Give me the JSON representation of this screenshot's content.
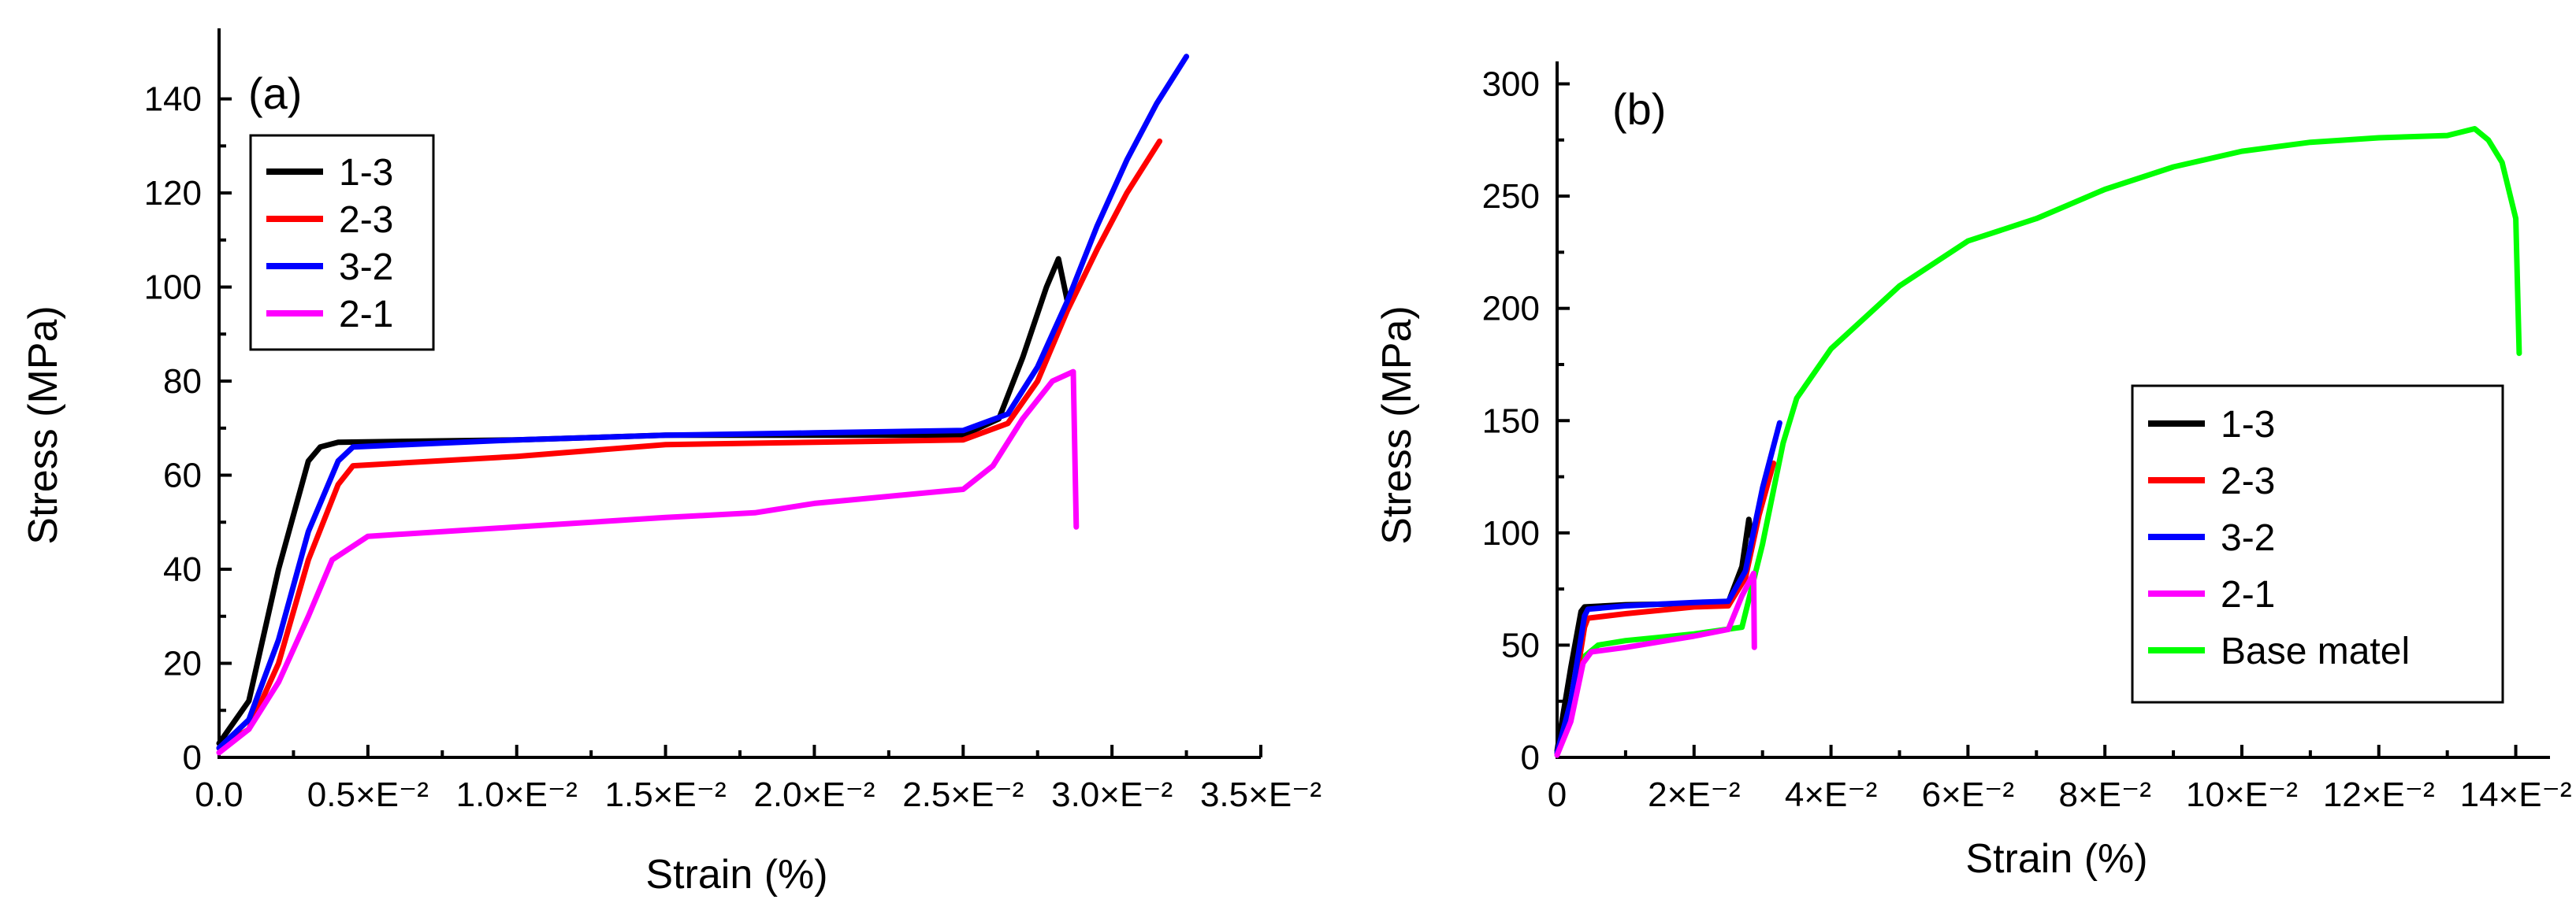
{
  "chart_data": [
    {
      "panel": "(a)",
      "type": "line",
      "xlabel": "Strain (%)",
      "ylabel": "Stress (MPa)",
      "xlim": [
        0,
        0.035
      ],
      "ylim": [
        0,
        155
      ],
      "xticks": [
        {
          "v": 0,
          "label": "0.0"
        },
        {
          "v": 0.005,
          "label": "0.5×E⁻²"
        },
        {
          "v": 0.01,
          "label": "1.0×E⁻²"
        },
        {
          "v": 0.015,
          "label": "1.5×E⁻²"
        },
        {
          "v": 0.02,
          "label": "2.0×E⁻²"
        },
        {
          "v": 0.025,
          "label": "2.5×E⁻²"
        },
        {
          "v": 0.03,
          "label": "3.0×E⁻²"
        },
        {
          "v": 0.035,
          "label": "3.5×E⁻²"
        }
      ],
      "yticks": [
        {
          "v": 0,
          "label": "0"
        },
        {
          "v": 20,
          "label": "20"
        },
        {
          "v": 40,
          "label": "40"
        },
        {
          "v": 60,
          "label": "60"
        },
        {
          "v": 80,
          "label": "80"
        },
        {
          "v": 100,
          "label": "100"
        },
        {
          "v": 120,
          "label": "120"
        },
        {
          "v": 140,
          "label": "140"
        }
      ],
      "legend_position": "top-left",
      "series": [
        {
          "name": "1-3",
          "color": "#000000",
          "x": [
            0,
            0.001,
            0.002,
            0.003,
            0.0034,
            0.004,
            0.01,
            0.015,
            0.02,
            0.025,
            0.0262,
            0.027,
            0.0278,
            0.0282,
            0.0285
          ],
          "y": [
            3,
            12,
            40,
            63,
            66,
            67,
            67.5,
            68.5,
            68.5,
            68.5,
            72,
            85,
            100,
            106,
            97
          ]
        },
        {
          "name": "2-3",
          "color": "#ff0000",
          "x": [
            0,
            0.001,
            0.002,
            0.003,
            0.004,
            0.0045,
            0.01,
            0.015,
            0.02,
            0.025,
            0.0265,
            0.0275,
            0.0285,
            0.0295,
            0.0305,
            0.0316
          ],
          "y": [
            2,
            6,
            20,
            42,
            58,
            62,
            64,
            66.5,
            67,
            67.5,
            71,
            80,
            95,
            108,
            120,
            131
          ]
        },
        {
          "name": "3-2",
          "color": "#0000ff",
          "x": [
            0,
            0.001,
            0.002,
            0.003,
            0.004,
            0.0045,
            0.01,
            0.015,
            0.02,
            0.025,
            0.0265,
            0.0275,
            0.0285,
            0.0295,
            0.0305,
            0.0315,
            0.0325
          ],
          "y": [
            2,
            8,
            25,
            48,
            63,
            66,
            67.5,
            68.5,
            69,
            69.5,
            73,
            83,
            97,
            113,
            127,
            139,
            149
          ]
        },
        {
          "name": "2-1",
          "color": "#ff00ff",
          "x": [
            0,
            0.001,
            0.002,
            0.003,
            0.0038,
            0.005,
            0.01,
            0.015,
            0.018,
            0.02,
            0.025,
            0.026,
            0.027,
            0.028,
            0.0287,
            0.0288
          ],
          "y": [
            1,
            6,
            16,
            30,
            42,
            47,
            49,
            51,
            52,
            54,
            57,
            62,
            72,
            80,
            82,
            49
          ]
        }
      ]
    },
    {
      "panel": "(b)",
      "type": "line",
      "xlabel": "Strain (%)",
      "ylabel": "Stress (MPa)",
      "xlim": [
        0,
        0.145
      ],
      "ylim": [
        0,
        310
      ],
      "xticks": [
        {
          "v": 0,
          "label": "0"
        },
        {
          "v": 0.02,
          "label": "2×E⁻²"
        },
        {
          "v": 0.04,
          "label": "4×E⁻²"
        },
        {
          "v": 0.06,
          "label": "6×E⁻²"
        },
        {
          "v": 0.08,
          "label": "8×E⁻²"
        },
        {
          "v": 0.1,
          "label": "10×E⁻²"
        },
        {
          "v": 0.12,
          "label": "12×E⁻²"
        },
        {
          "v": 0.14,
          "label": "14×E⁻²"
        }
      ],
      "yticks": [
        {
          "v": 0,
          "label": "0"
        },
        {
          "v": 50,
          "label": "50"
        },
        {
          "v": 100,
          "label": "100"
        },
        {
          "v": 150,
          "label": "150"
        },
        {
          "v": 200,
          "label": "200"
        },
        {
          "v": 250,
          "label": "250"
        },
        {
          "v": 300,
          "label": "300"
        }
      ],
      "legend_position": "bottom-right",
      "series": [
        {
          "name": "1-3",
          "color": "#000000",
          "x": [
            0,
            0.002,
            0.0035,
            0.004,
            0.01,
            0.02,
            0.025,
            0.027,
            0.028,
            0.0285
          ],
          "y": [
            3,
            40,
            65,
            67,
            68,
            68.5,
            69,
            85,
            106,
            97
          ]
        },
        {
          "name": "2-3",
          "color": "#ff0000",
          "x": [
            0,
            0.002,
            0.004,
            0.0045,
            0.01,
            0.02,
            0.025,
            0.0275,
            0.0295,
            0.0316
          ],
          "y": [
            2,
            20,
            58,
            62,
            64,
            67,
            67.5,
            80,
            108,
            131
          ]
        },
        {
          "name": "3-2",
          "color": "#0000ff",
          "x": [
            0,
            0.002,
            0.004,
            0.0045,
            0.01,
            0.02,
            0.025,
            0.0275,
            0.03,
            0.0325
          ],
          "y": [
            2,
            25,
            63,
            66,
            67.5,
            69,
            69.5,
            83,
            120,
            149
          ]
        },
        {
          "name": "2-1",
          "color": "#ff00ff",
          "x": [
            0,
            0.002,
            0.0038,
            0.005,
            0.01,
            0.02,
            0.025,
            0.027,
            0.0287,
            0.0288
          ],
          "y": [
            1,
            16,
            42,
            47,
            49,
            54,
            57,
            72,
            82,
            49
          ]
        },
        {
          "name": "Base matel",
          "color": "#00ff00",
          "x": [
            0,
            0.002,
            0.004,
            0.006,
            0.01,
            0.02,
            0.027,
            0.03,
            0.033,
            0.035,
            0.04,
            0.05,
            0.06,
            0.07,
            0.08,
            0.09,
            0.1,
            0.11,
            0.12,
            0.13,
            0.134,
            0.136,
            0.138,
            0.14,
            0.1405
          ],
          "y": [
            2,
            25,
            45,
            50,
            52,
            55,
            58,
            95,
            140,
            160,
            182,
            210,
            230,
            240,
            253,
            263,
            270,
            274,
            276,
            277,
            280,
            275,
            265,
            240,
            180
          ]
        }
      ]
    }
  ]
}
